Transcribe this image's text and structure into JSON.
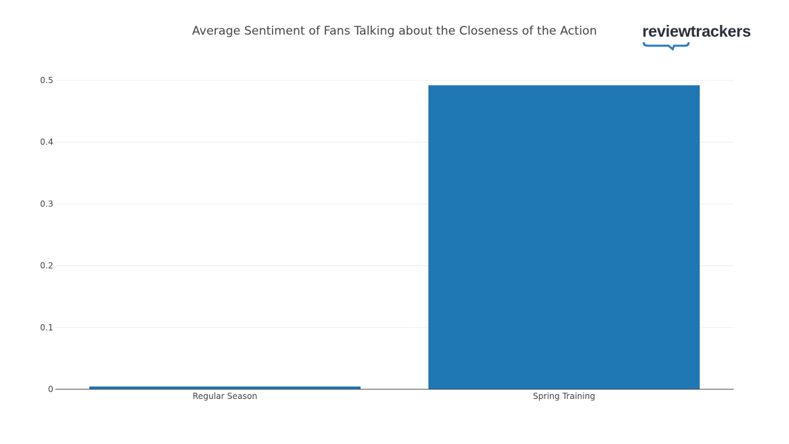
{
  "logo": {
    "text": "reviewtrackers",
    "color": "#2a2f3a",
    "accent": "#2f7bc4"
  },
  "chart_data": {
    "type": "bar",
    "title": "Average Sentiment of Fans Talking about the Closeness of the Action",
    "xlabel": "",
    "ylabel": "",
    "categories": [
      "Regular Season",
      "Spring Training"
    ],
    "values": [
      0.0045,
      0.492
    ],
    "ylim": [
      0,
      0.5
    ],
    "yticks": [
      0,
      0.1,
      0.2,
      0.3,
      0.4,
      0.5
    ],
    "ytick_labels": [
      "0",
      "0.1",
      "0.2",
      "0.3",
      "0.4",
      "0.5"
    ],
    "grid": true,
    "bar_color": "#1f77b4"
  }
}
